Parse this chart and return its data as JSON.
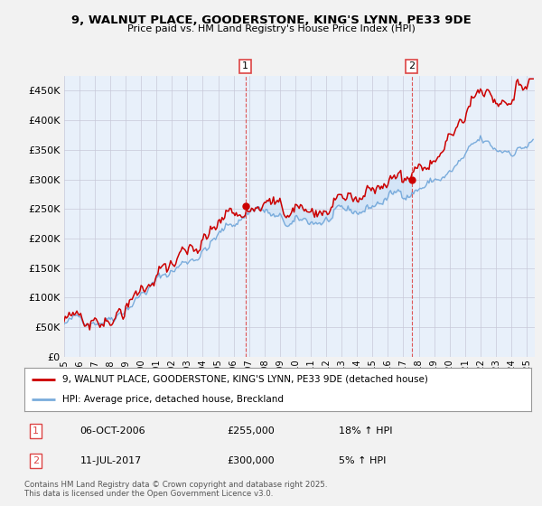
{
  "title_line1": "9, WALNUT PLACE, GOODERSTONE, KING'S LYNN, PE33 9DE",
  "title_line2": "Price paid vs. HM Land Registry's House Price Index (HPI)",
  "ylim": [
    0,
    475000
  ],
  "yticks": [
    0,
    50000,
    100000,
    150000,
    200000,
    250000,
    300000,
    350000,
    400000,
    450000
  ],
  "ytick_labels": [
    "£0",
    "£50K",
    "£100K",
    "£150K",
    "£200K",
    "£250K",
    "£300K",
    "£350K",
    "£400K",
    "£450K"
  ],
  "sale1_date": "06-OCT-2006",
  "sale1_price": 255000,
  "sale1_hpi_txt": "18% ↑ HPI",
  "sale2_date": "11-JUL-2017",
  "sale2_price": 300000,
  "sale2_hpi_txt": "5% ↑ HPI",
  "legend_line1": "9, WALNUT PLACE, GOODERSTONE, KING'S LYNN, PE33 9DE (detached house)",
  "legend_line2": "HPI: Average price, detached house, Breckland",
  "footer": "Contains HM Land Registry data © Crown copyright and database right 2025.\nThis data is licensed under the Open Government Licence v3.0.",
  "line_color_red": "#cc0000",
  "line_color_blue": "#7aacdc",
  "fill_color_blue": "#c8dff5",
  "vline_color": "#dd4444",
  "bg_color": "#e8f0fa",
  "sale1_x_year": 2006.76,
  "sale2_x_year": 2017.53,
  "xmin": 1995.0,
  "xmax": 2025.5
}
